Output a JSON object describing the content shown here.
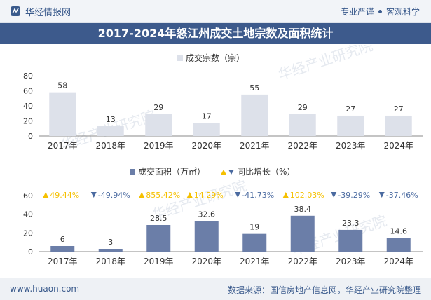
{
  "header": {
    "brand": "华经情报网",
    "slogan_left": "专业严谨",
    "slogan_right": "客观科学"
  },
  "title": "2017-2024年怒江州成交土地宗数及面积统计",
  "watermark": "华经产业研究院",
  "chart_data": [
    {
      "type": "bar",
      "categories": [
        "2017年",
        "2018年",
        "2019年",
        "2020年",
        "2021年",
        "2022年",
        "2023年",
        "2024年"
      ],
      "series": [
        {
          "name": "成交宗数（宗）",
          "values": [
            58,
            13,
            29,
            17,
            55,
            29,
            27,
            27
          ],
          "color": "#dde1ea"
        }
      ],
      "ylim": [
        0,
        80
      ],
      "yticks": [
        0,
        20,
        40,
        60,
        80
      ],
      "grid": false,
      "legend": "top-center"
    },
    {
      "type": "bar",
      "categories": [
        "2017年",
        "2018年",
        "2019年",
        "2020年",
        "2021年",
        "2022年",
        "2023年",
        "2024年"
      ],
      "series": [
        {
          "name": "成交面积（万㎡）",
          "values": [
            6,
            3,
            28.5,
            32.6,
            19,
            38.4,
            23.3,
            14.6
          ],
          "color": "#6b7ea8"
        }
      ],
      "yoy_name": "同比增长（%）",
      "yoy": [
        {
          "label": "49.44%",
          "dir": "up"
        },
        {
          "label": "-49.94%",
          "dir": "down"
        },
        {
          "label": "855.42%",
          "dir": "up"
        },
        {
          "label": "14.29%",
          "dir": "up"
        },
        {
          "label": "-41.73%",
          "dir": "down"
        },
        {
          "label": "102.03%",
          "dir": "up"
        },
        {
          "label": "-39.29%",
          "dir": "down"
        },
        {
          "label": "-37.46%",
          "dir": "down"
        }
      ],
      "colors": {
        "up": "#f5c000",
        "down": "#4a6aa0"
      },
      "ylim": [
        0,
        60
      ],
      "yticks": [
        0,
        20,
        40,
        60
      ],
      "grid": false,
      "legend": "top-center"
    }
  ],
  "footer": {
    "site": "www.huaon.com",
    "source": "数据来源：国信房地产信息网，华经产业研究院整理"
  }
}
